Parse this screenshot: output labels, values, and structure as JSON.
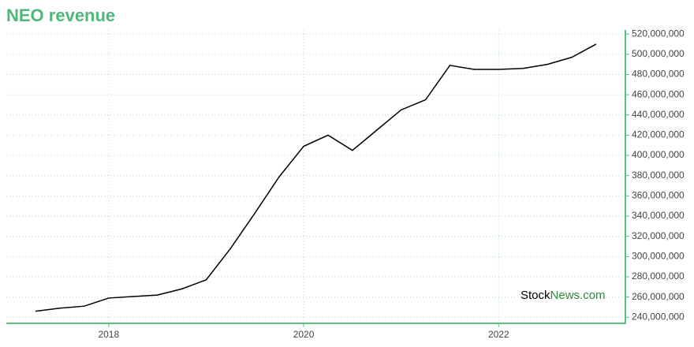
{
  "chart_data": {
    "type": "line",
    "title": "NEO revenue",
    "watermark": [
      "Stock",
      "News.com"
    ],
    "x": [
      2017.25,
      2017.5,
      2017.75,
      2018,
      2018.25,
      2018.5,
      2018.75,
      2019,
      2019.25,
      2019.5,
      2019.75,
      2020,
      2020.25,
      2020.5,
      2020.75,
      2021,
      2021.25,
      2021.5,
      2021.75,
      2022,
      2022.25,
      2022.5,
      2022.75,
      2023
    ],
    "series": [
      {
        "name": "Revenue",
        "color": "#000000",
        "values": [
          246000000,
          249000000,
          251000000,
          259000000,
          260500000,
          262000000,
          268000000,
          277000000,
          308000000,
          343000000,
          379000000,
          409000000,
          420000000,
          405000000,
          425000000,
          445000000,
          455000000,
          489000000,
          485000000,
          485000000,
          486000000,
          490000000,
          497000000,
          510000000
        ]
      }
    ],
    "xlim": [
      2016.95,
      2023.3
    ],
    "xticks": [
      2018,
      2020,
      2022
    ],
    "ylim": [
      234000000,
      524000000
    ],
    "yticks": [
      {
        "value": 240000000,
        "label": "240,000,000"
      },
      {
        "value": 260000000,
        "label": "260,000,000"
      },
      {
        "value": 280000000,
        "label": "280,000,000"
      },
      {
        "value": 300000000,
        "label": "300,000,000"
      },
      {
        "value": 320000000,
        "label": "320,000,000"
      },
      {
        "value": 340000000,
        "label": "340,000,000"
      },
      {
        "value": 360000000,
        "label": "360,000,000"
      },
      {
        "value": 380000000,
        "label": "380,000,000"
      },
      {
        "value": 400000000,
        "label": "400,000,000"
      },
      {
        "value": 420000000,
        "label": "420,000,000"
      },
      {
        "value": 440000000,
        "label": "440,000,000"
      },
      {
        "value": 460000000,
        "label": "460,000,000"
      },
      {
        "value": 480000000,
        "label": "480,000,000"
      },
      {
        "value": 500000000,
        "label": "500,000,000"
      },
      {
        "value": 520000000,
        "label": "520,000,000"
      }
    ],
    "grid": true,
    "axis_color": "#5cbf7f",
    "title_color": "#4cb87a"
  }
}
